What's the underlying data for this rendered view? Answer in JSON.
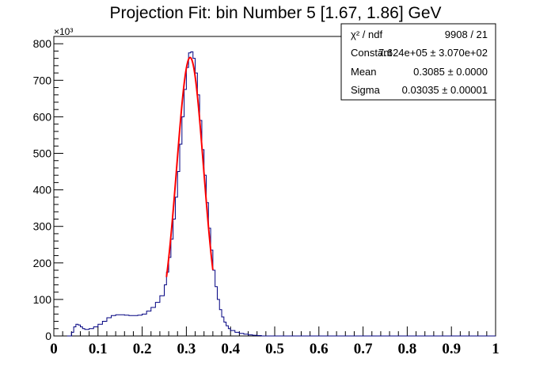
{
  "chart_data": {
    "type": "line",
    "title": "Projection Fit: bin Number 5 [1.67, 1.86] GeV",
    "xlabel": "",
    "ylabel": "",
    "y_multiplier": "×10³",
    "xlim": [
      0,
      1
    ],
    "ylim": [
      0,
      820
    ],
    "x_ticks": [
      "0",
      "0.1",
      "0.2",
      "0.3",
      "0.4",
      "0.5",
      "0.6",
      "0.7",
      "0.8",
      "0.9",
      "1"
    ],
    "y_ticks": [
      "0",
      "100",
      "200",
      "300",
      "400",
      "500",
      "600",
      "700",
      "800"
    ],
    "grid": false,
    "legend": "none",
    "series": [
      {
        "color": "#000080",
        "style": "histogram-step",
        "x": [
          0.03,
          0.04,
          0.045,
          0.05,
          0.055,
          0.06,
          0.065,
          0.07,
          0.08,
          0.09,
          0.1,
          0.11,
          0.12,
          0.13,
          0.14,
          0.15,
          0.16,
          0.17,
          0.18,
          0.19,
          0.2,
          0.21,
          0.22,
          0.23,
          0.24,
          0.25,
          0.255,
          0.26,
          0.265,
          0.27,
          0.275,
          0.28,
          0.285,
          0.29,
          0.295,
          0.3,
          0.305,
          0.31,
          0.315,
          0.32,
          0.325,
          0.33,
          0.335,
          0.34,
          0.345,
          0.35,
          0.355,
          0.36,
          0.365,
          0.37,
          0.375,
          0.38,
          0.385,
          0.39,
          0.395,
          0.4,
          0.41,
          0.42,
          0.43,
          0.44,
          0.45,
          0.46,
          0.47,
          0.48,
          0.49,
          0.5
        ],
        "y": [
          0,
          10,
          25,
          32,
          30,
          25,
          20,
          18,
          20,
          25,
          32,
          40,
          50,
          56,
          58,
          58,
          57,
          56,
          56,
          57,
          60,
          68,
          78,
          92,
          110,
          140,
          175,
          215,
          265,
          320,
          380,
          450,
          525,
          600,
          675,
          735,
          775,
          778,
          760,
          720,
          660,
          590,
          510,
          440,
          365,
          295,
          235,
          180,
          135,
          100,
          72,
          52,
          38,
          28,
          20,
          15,
          10,
          7,
          5,
          3,
          2,
          1,
          0,
          0,
          0,
          0
        ]
      },
      {
        "name": "fit",
        "color": "#ff0000",
        "style": "gaussian",
        "x_range": [
          0.255,
          0.36
        ],
        "constant": 762.4,
        "mean": 0.3085,
        "sigma": 0.03035
      }
    ]
  },
  "stats": {
    "rows": [
      {
        "label": "χ² / ndf",
        "value": "9908 / 21"
      },
      {
        "label": "Constant",
        "value": "7.624e+05 ± 3.070e+02"
      },
      {
        "label": "Mean",
        "value": "0.3085 ± 0.0000"
      },
      {
        "label": "Sigma",
        "value": "0.03035 ± 0.00001"
      }
    ]
  }
}
